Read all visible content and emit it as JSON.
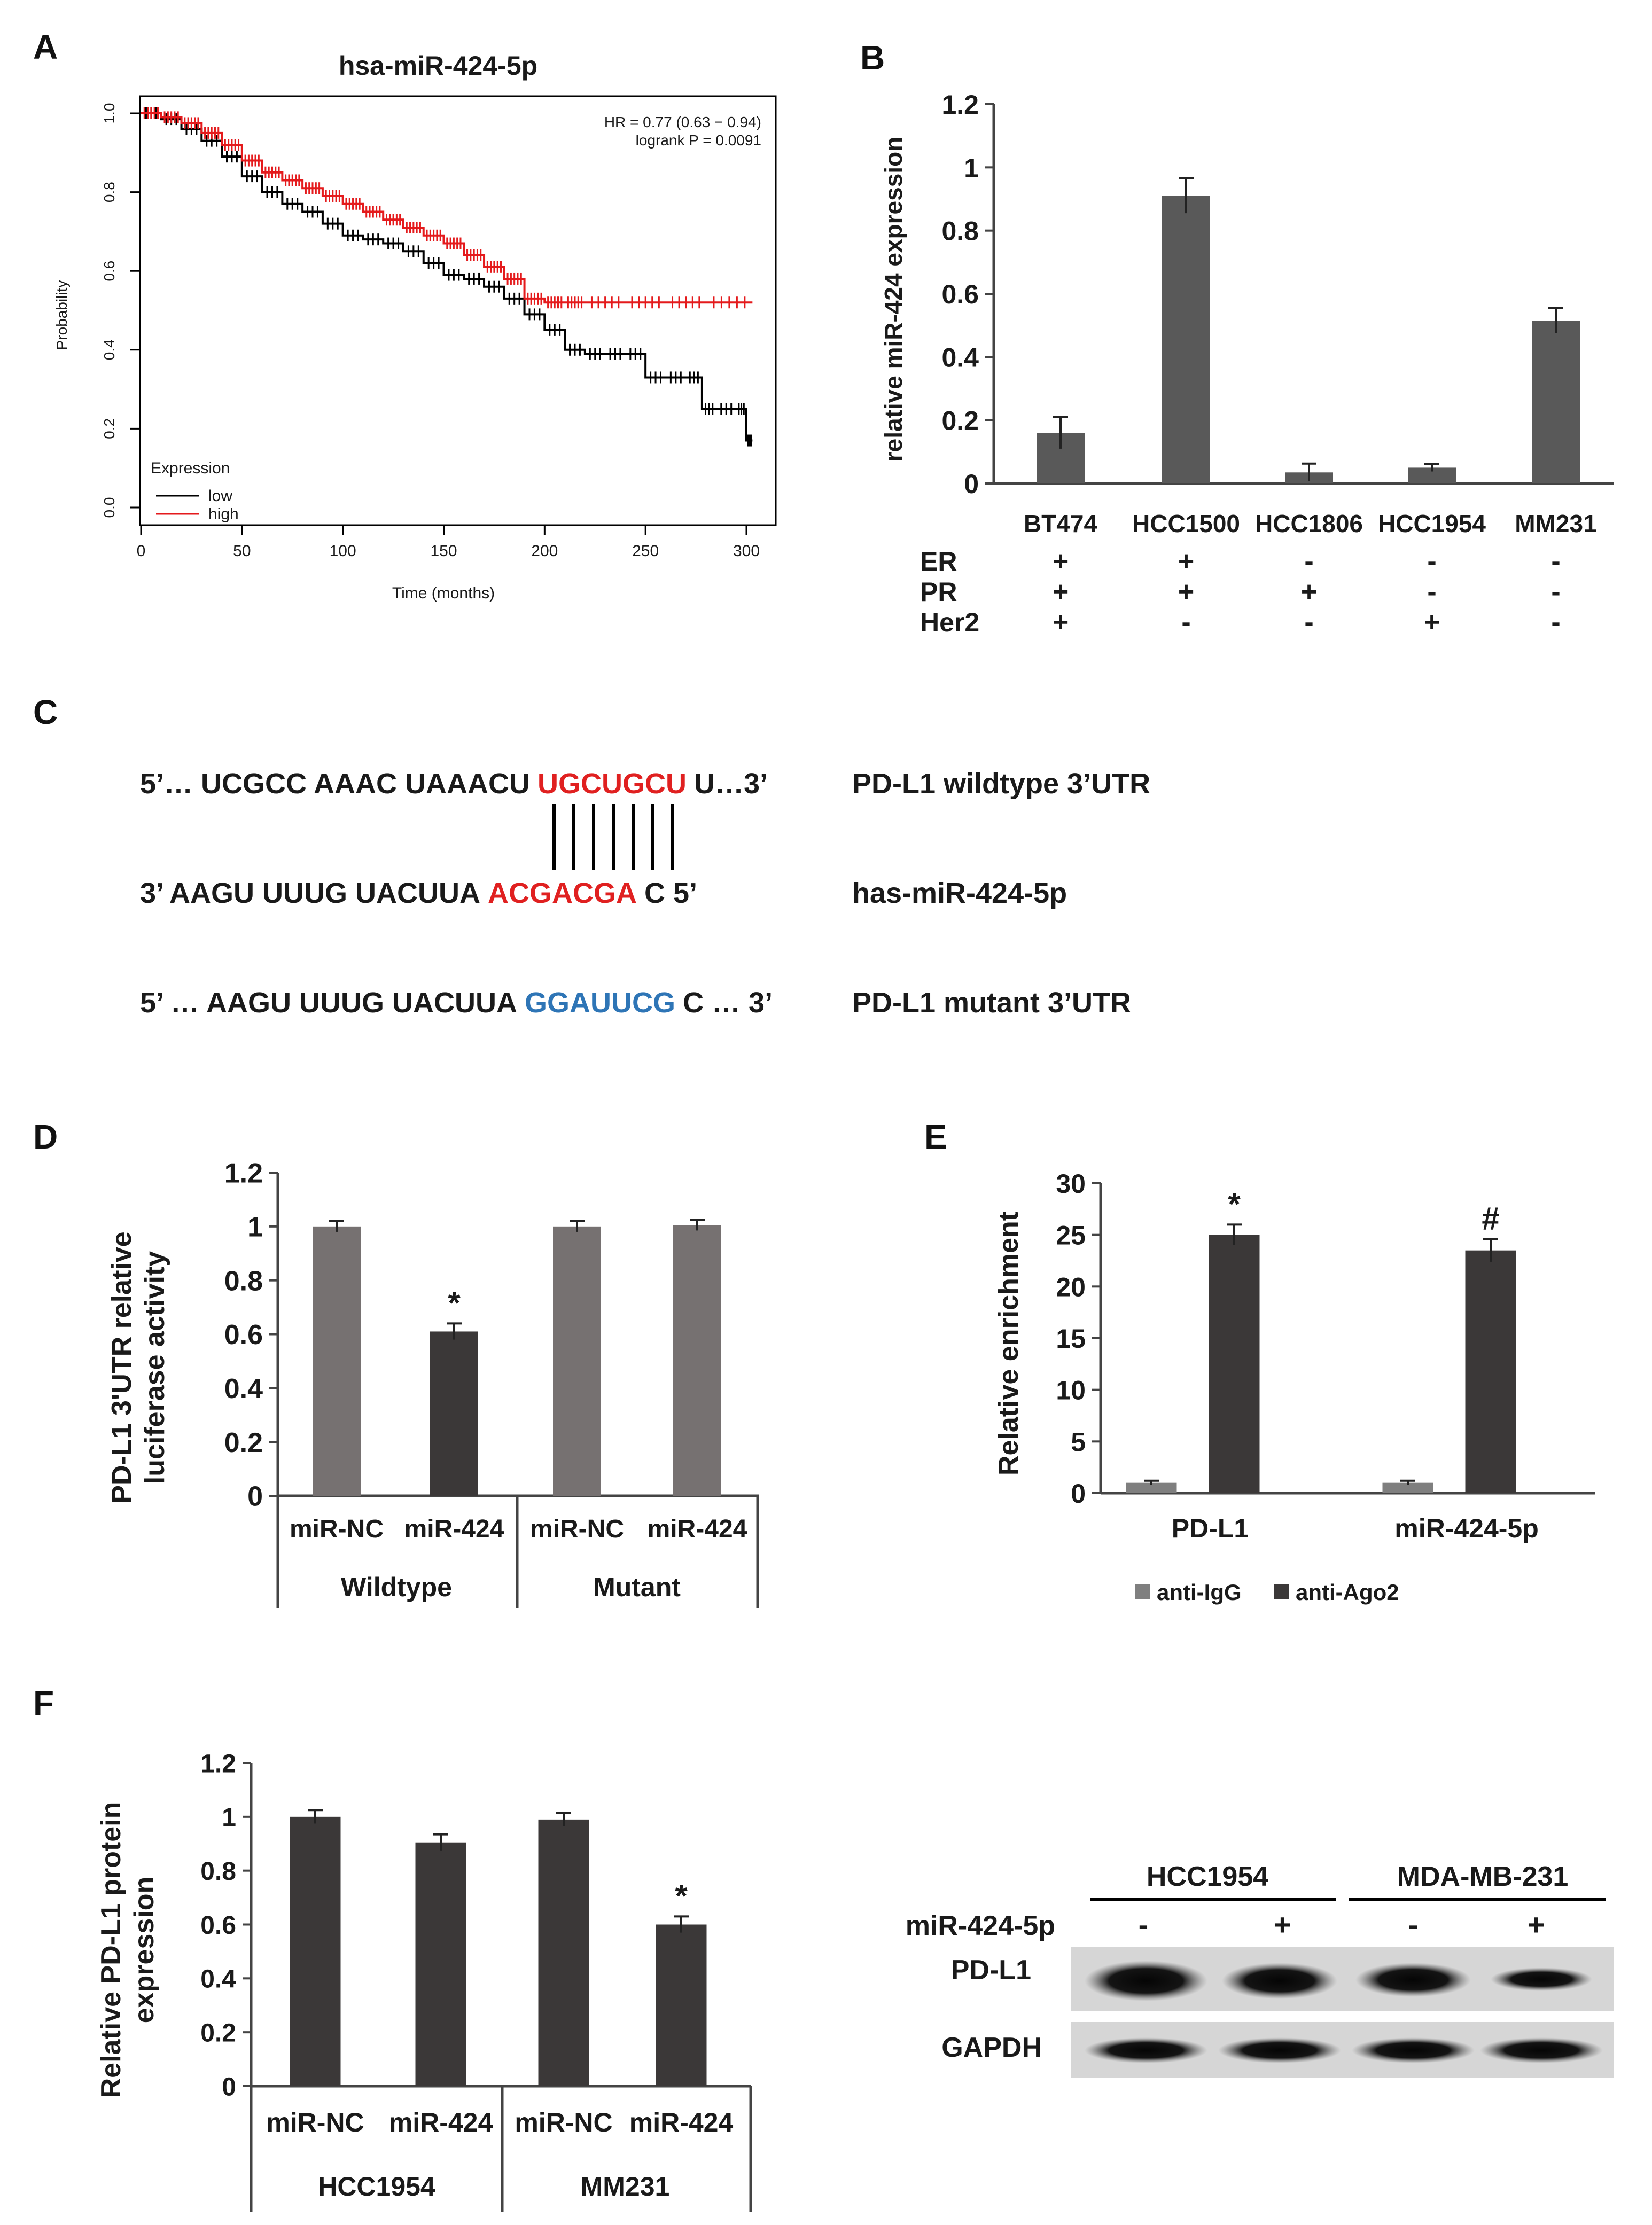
{
  "panels": {
    "A": "A",
    "B": "B",
    "C": "C",
    "D": "D",
    "E": "E",
    "F": "F"
  },
  "chart_data": [
    {
      "id": "A",
      "type": "line",
      "title": "hsa-miR-424-5p",
      "xlabel": "Time (months)",
      "ylabel": "Probability",
      "xlim": [
        0,
        310
      ],
      "ylim": [
        0,
        1.0
      ],
      "xticks": [
        "0",
        "50",
        "100",
        "150",
        "200",
        "250",
        "300"
      ],
      "yticks": [
        "0.0",
        "0.2",
        "0.4",
        "0.6",
        "0.8",
        "1.0"
      ],
      "annotation": [
        "HR = 0.77 (0.63 − 0.94)",
        "logrank P = 0.0091"
      ],
      "legend_title": "Expression",
      "series": [
        {
          "name": "low",
          "color": "#000000",
          "x": [
            0,
            10,
            20,
            30,
            40,
            50,
            60,
            70,
            80,
            90,
            100,
            110,
            120,
            130,
            140,
            150,
            160,
            170,
            180,
            190,
            200,
            210,
            220,
            230,
            240,
            250,
            260,
            270,
            278,
            285,
            295,
            300,
            303
          ],
          "y": [
            1.0,
            0.985,
            0.96,
            0.93,
            0.89,
            0.84,
            0.8,
            0.77,
            0.75,
            0.72,
            0.69,
            0.68,
            0.67,
            0.65,
            0.62,
            0.59,
            0.58,
            0.56,
            0.53,
            0.49,
            0.45,
            0.4,
            0.39,
            0.39,
            0.39,
            0.33,
            0.33,
            0.33,
            0.25,
            0.25,
            0.25,
            0.17,
            0.17
          ]
        },
        {
          "name": "high",
          "color": "#e41a1c",
          "x": [
            0,
            10,
            20,
            30,
            40,
            50,
            60,
            70,
            80,
            90,
            100,
            110,
            120,
            130,
            140,
            150,
            160,
            170,
            180,
            190,
            200,
            210,
            220,
            240,
            260,
            280,
            303
          ],
          "y": [
            1.0,
            0.99,
            0.975,
            0.95,
            0.92,
            0.88,
            0.85,
            0.83,
            0.81,
            0.79,
            0.77,
            0.75,
            0.73,
            0.71,
            0.69,
            0.67,
            0.64,
            0.61,
            0.58,
            0.53,
            0.52,
            0.52,
            0.52,
            0.52,
            0.52,
            0.52,
            0.52
          ]
        }
      ]
    },
    {
      "id": "B",
      "type": "bar",
      "title": "",
      "ylabel": "relative miR-424 expression",
      "categories": [
        "BT474",
        "HCC1500",
        "HCC1806",
        "HCC1954",
        "MM231"
      ],
      "values": [
        0.16,
        0.91,
        0.035,
        0.05,
        0.515
      ],
      "errors": [
        0.05,
        0.055,
        0.028,
        0.012,
        0.04
      ],
      "ylim": [
        0,
        1.2
      ],
      "yticks": [
        "0",
        "0.2",
        "0.4",
        "0.6",
        "0.8",
        "1",
        "1.2"
      ],
      "color": "#595959",
      "receptor_table": {
        "rows": [
          {
            "label": "ER",
            "values": [
              "+",
              "+",
              "-",
              "-",
              "-"
            ]
          },
          {
            "label": "PR",
            "values": [
              "+",
              "+",
              "+",
              "-",
              "-"
            ]
          },
          {
            "label": "Her2",
            "values": [
              "+",
              "-",
              "-",
              "+",
              "-"
            ]
          }
        ]
      }
    },
    {
      "id": "D",
      "type": "bar",
      "ylabel": [
        "PD-L1 3'UTR relative",
        "luciferase activity"
      ],
      "categories": [
        "miR-NC",
        "miR-424",
        "miR-NC",
        "miR-424"
      ],
      "groups": [
        "Wildtype",
        "Mutant"
      ],
      "values": [
        1.0,
        0.61,
        1.0,
        1.005
      ],
      "errors": [
        0.02,
        0.03,
        0.02,
        0.02
      ],
      "colors": [
        "#767171",
        "#3b3838",
        "#767171",
        "#767171"
      ],
      "significance": [
        "",
        "*",
        "",
        ""
      ],
      "ylim": [
        0,
        1.2
      ],
      "yticks": [
        "0",
        "0.2",
        "0.4",
        "0.6",
        "0.8",
        "1",
        "1.2"
      ]
    },
    {
      "id": "E",
      "type": "bar",
      "ylabel": "Relative enrichment",
      "categories": [
        "PD-L1",
        "miR-424-5p"
      ],
      "series": [
        {
          "name": "anti-IgG",
          "color": "#7f7f7f",
          "values": [
            1.0,
            1.0
          ],
          "errors": [
            0.2,
            0.2
          ]
        },
        {
          "name": "anti-Ago2",
          "color": "#3b3838",
          "values": [
            25.0,
            23.5
          ],
          "errors": [
            1.0,
            1.1
          ]
        }
      ],
      "significance": [
        "*",
        "#"
      ],
      "ylim": [
        0,
        30
      ],
      "yticks": [
        "0",
        "5",
        "10",
        "15",
        "20",
        "25",
        "30"
      ]
    },
    {
      "id": "F",
      "type": "bar",
      "ylabel": [
        "Relative PD-L1 protein",
        "expression"
      ],
      "categories": [
        "miR-NC",
        "miR-424",
        "miR-NC",
        "miR-424"
      ],
      "groups": [
        "HCC1954",
        "MM231"
      ],
      "values": [
        1.0,
        0.905,
        0.99,
        0.6
      ],
      "errors": [
        0.025,
        0.03,
        0.025,
        0.03
      ],
      "colors": [
        "#3b3838",
        "#3b3838",
        "#3b3838",
        "#3b3838"
      ],
      "significance": [
        "",
        "",
        "",
        "*"
      ],
      "ylim": [
        0,
        1.2
      ],
      "yticks": [
        "0",
        "0.2",
        "0.4",
        "0.6",
        "0.8",
        "1",
        "1.2"
      ]
    }
  ],
  "panel_c": {
    "rows": [
      {
        "prefix": "5’… UCGCC AAAC UAAACU",
        "seed": "UGCUGCU",
        "suffix": "U…3’",
        "label": "PD-L1 wildtype 3’UTR",
        "seed_color": "#e02020"
      },
      {
        "prefix": "3’    AAGU UUUG UACUUA",
        "seed": "ACGACGA",
        "suffix": "C    5’",
        "label": "has-miR-424-5p",
        "seed_color": "#e02020"
      },
      {
        "prefix": "5’ … AAGU UUUG UACUUA",
        "seed": "GGAUUCG",
        "suffix": "C … 3’",
        "label": "PD-L1 mutant 3’UTR",
        "seed_color": "#2e75b6"
      }
    ]
  },
  "western_blot": {
    "cell_lines": [
      "HCC1954",
      "MDA-MB-231"
    ],
    "treatment_label": "miR-424-5p",
    "treatment": [
      "-",
      "+",
      "-",
      "+"
    ],
    "bands": [
      "PD-L1",
      "GAPDH"
    ]
  }
}
